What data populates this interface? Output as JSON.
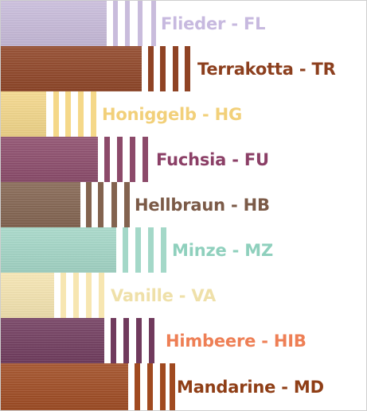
{
  "swatches": [
    {
      "label": "Flieder - FL",
      "color": "#c9bcdc",
      "text_color": "#c7b9df"
    },
    {
      "label": "Terrakotta - TR",
      "color": "#8f4324",
      "text_color": "#8c3f1e"
    },
    {
      "label": "Honiggelb - HG",
      "color": "#f5d889",
      "text_color": "#f2d07a"
    },
    {
      "label": "Fuchsia - FU",
      "color": "#8c4a6a",
      "text_color": "#8b3f66"
    },
    {
      "label": "Hellbraun - HB",
      "color": "#83634f",
      "text_color": "#7b5a47"
    },
    {
      "label": "Minze - MZ",
      "color": "#a4d8c8",
      "text_color": "#8fd0bd"
    },
    {
      "label": "Vanille - VA",
      "color": "#f7e6b1",
      "text_color": "#efe0a9"
    },
    {
      "label": "Himbeere - HIB",
      "color": "#703a5d",
      "text_color": "#ee7f55"
    },
    {
      "label": "Mandarine - MD",
      "color": "#a04a20",
      "text_color": "#8f3e16"
    }
  ]
}
